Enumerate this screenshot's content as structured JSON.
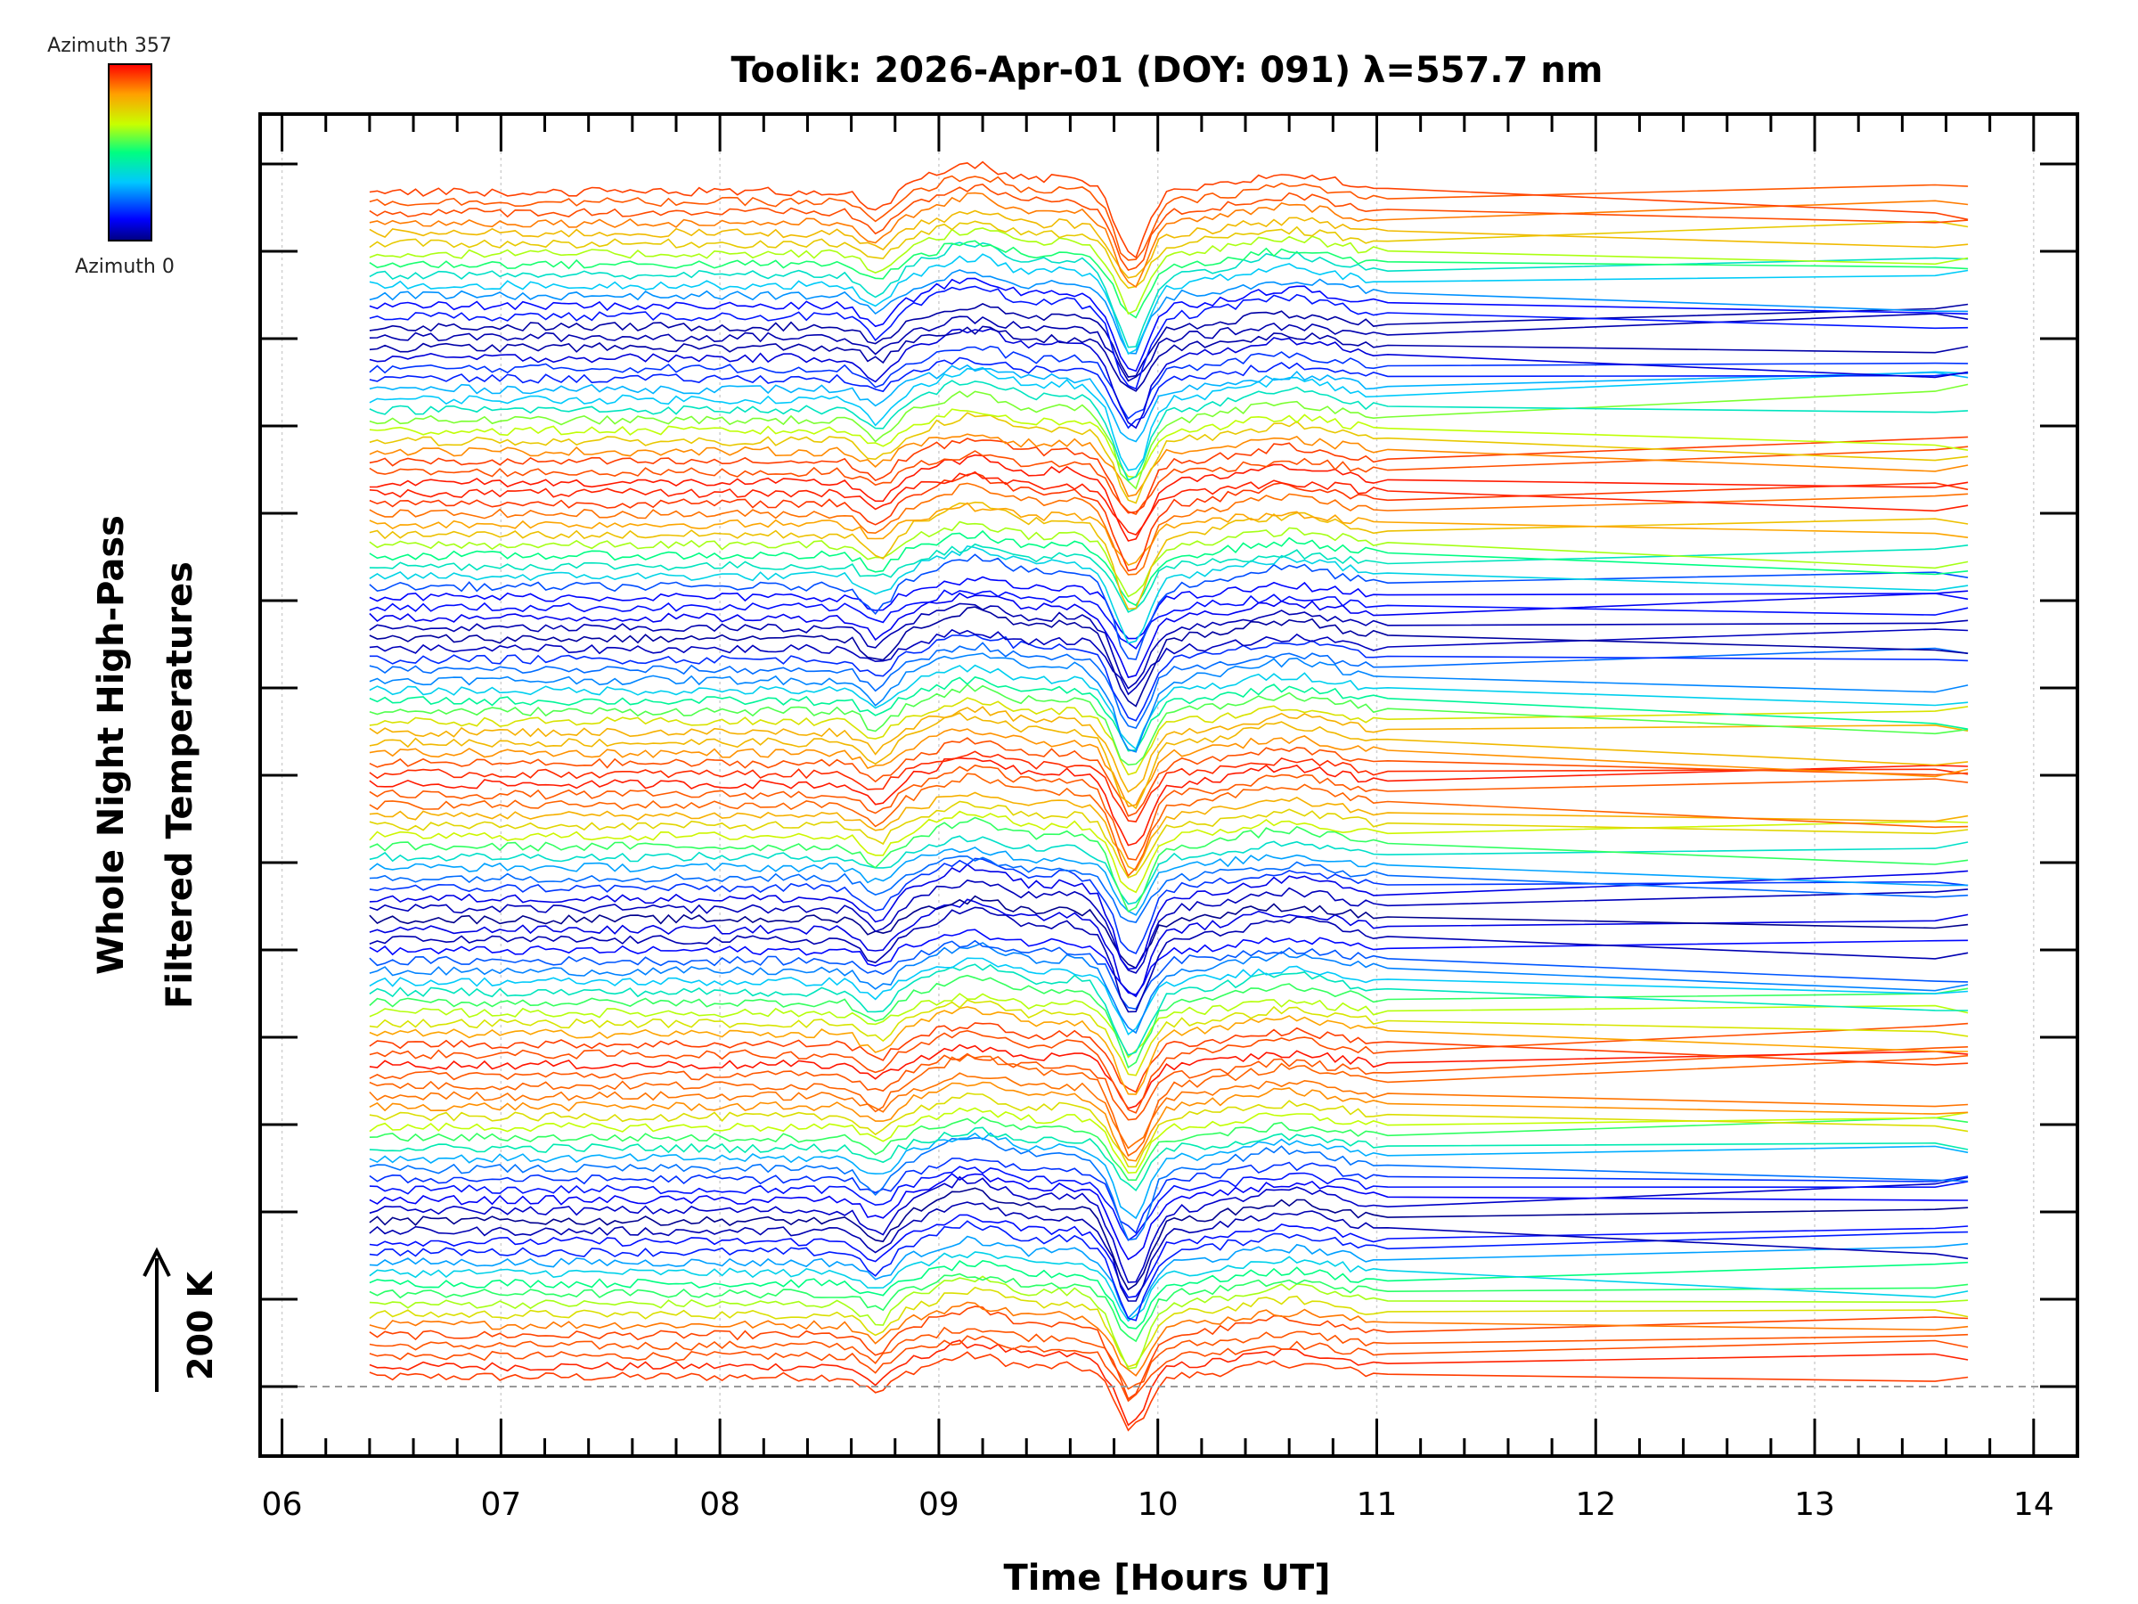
{
  "chart_data": {
    "type": "line",
    "title": "Toolik: 2026-Apr-01 (DOY: 091) λ=557.7 nm",
    "xlabel": "Time [Hours UT]",
    "ylabel_lines": [
      "Whole Night High-Pass",
      "Filtered Temperatures"
    ],
    "xlim": [
      5.9,
      14.2
    ],
    "x_ticks": [
      "06",
      "07",
      "08",
      "09",
      "10",
      "11",
      "12",
      "13",
      "14"
    ],
    "x_tick_values": [
      6,
      7,
      8,
      9,
      10,
      11,
      12,
      13,
      14
    ],
    "y_major_tick_count": 15,
    "y_tick_labels": [],
    "scale_bar": {
      "label": "200 K",
      "value_K": 200
    },
    "colorbar": {
      "label_max": "Azimuth 357",
      "label_min": "Azimuth 0",
      "azimuth_range": [
        0,
        357
      ],
      "colors": [
        "#000080",
        "#0000ff",
        "#00c8ff",
        "#00ff80",
        "#c8ff00",
        "#ffa000",
        "#ff0000"
      ]
    },
    "grid": "vertical dotted at each hour",
    "baseline": "dashed horizontal at lowest trace offset",
    "series_count": 115,
    "time_range_hours": [
      6.4,
      13.7
    ],
    "series_description": "Stacked high-pass filtered temperature traces, one per azimuth; each trace offset vertically, colored by azimuth. Common features: dip near 08.7 UT, rise around 09.1 UT, sharp minimum near 09.9 UT, recovery and maximum near 10.6 UT, then smooth decline to 13.7 UT."
  }
}
